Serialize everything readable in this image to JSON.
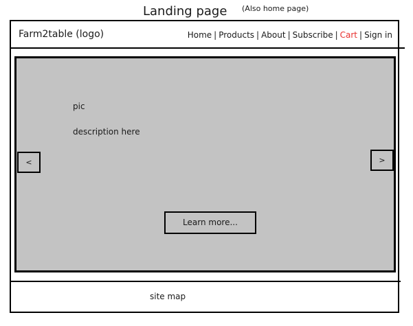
{
  "page": {
    "title": "Landing page",
    "note": "(Also home page)"
  },
  "header": {
    "logo": "Farm2table (logo)",
    "nav": {
      "separator": "|",
      "items": [
        {
          "label": "Home"
        },
        {
          "label": "Products"
        },
        {
          "label": "About"
        },
        {
          "label": "Subscribe"
        },
        {
          "label": "Cart",
          "color": "#e8312f"
        },
        {
          "label": "Sign in"
        }
      ]
    }
  },
  "hero": {
    "pic": "pic",
    "description": "description here",
    "prev_label": "<",
    "next_label": ">",
    "cta_label": "Learn more...",
    "background": "#c3c3c3"
  },
  "footer": {
    "sitemap": "site map"
  }
}
